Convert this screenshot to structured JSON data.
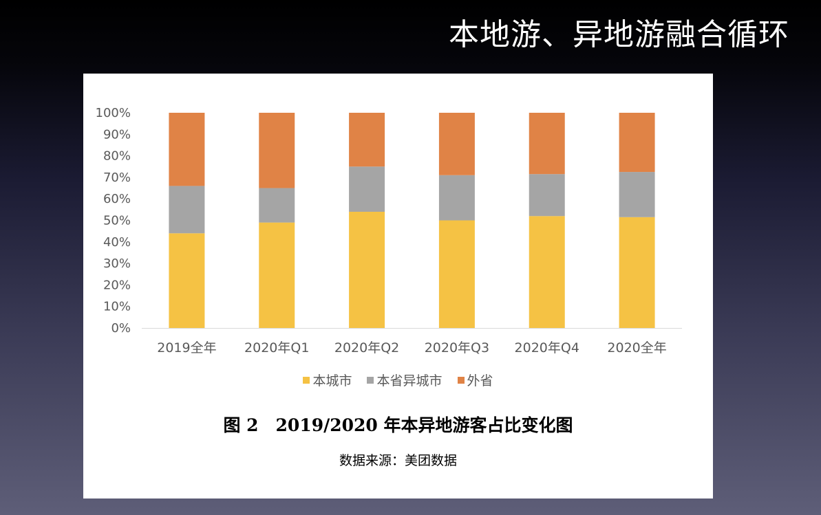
{
  "slide": {
    "title": "本地游、异地游融合循环"
  },
  "figure": {
    "caption": "图 2　2019/2020 年本异地游客占比变化图",
    "source": "数据来源：美团数据"
  },
  "colors": {
    "local_city": "#F5C244",
    "other_city_same_province": "#A5A5A5",
    "other_province": "#E08346",
    "axis_text": "#595959"
  },
  "chart_data": {
    "type": "bar",
    "stacked": true,
    "percent": true,
    "categories": [
      "2019全年",
      "2020年Q1",
      "2020年Q2",
      "2020年Q3",
      "2020年Q4",
      "2020全年"
    ],
    "series": [
      {
        "name": "本城市",
        "values": [
          44,
          49,
          54,
          50,
          52,
          51.5
        ]
      },
      {
        "name": "本省异城市",
        "values": [
          22,
          16,
          21,
          21,
          19.5,
          21
        ]
      },
      {
        "name": "外省",
        "values": [
          34,
          35,
          25,
          29,
          28.5,
          27.5
        ]
      }
    ],
    "yticks": [
      "0%",
      "10%",
      "20%",
      "30%",
      "40%",
      "50%",
      "60%",
      "70%",
      "80%",
      "90%",
      "100%"
    ],
    "ylim": [
      0,
      100
    ],
    "legend_position": "bottom",
    "grid": false
  }
}
